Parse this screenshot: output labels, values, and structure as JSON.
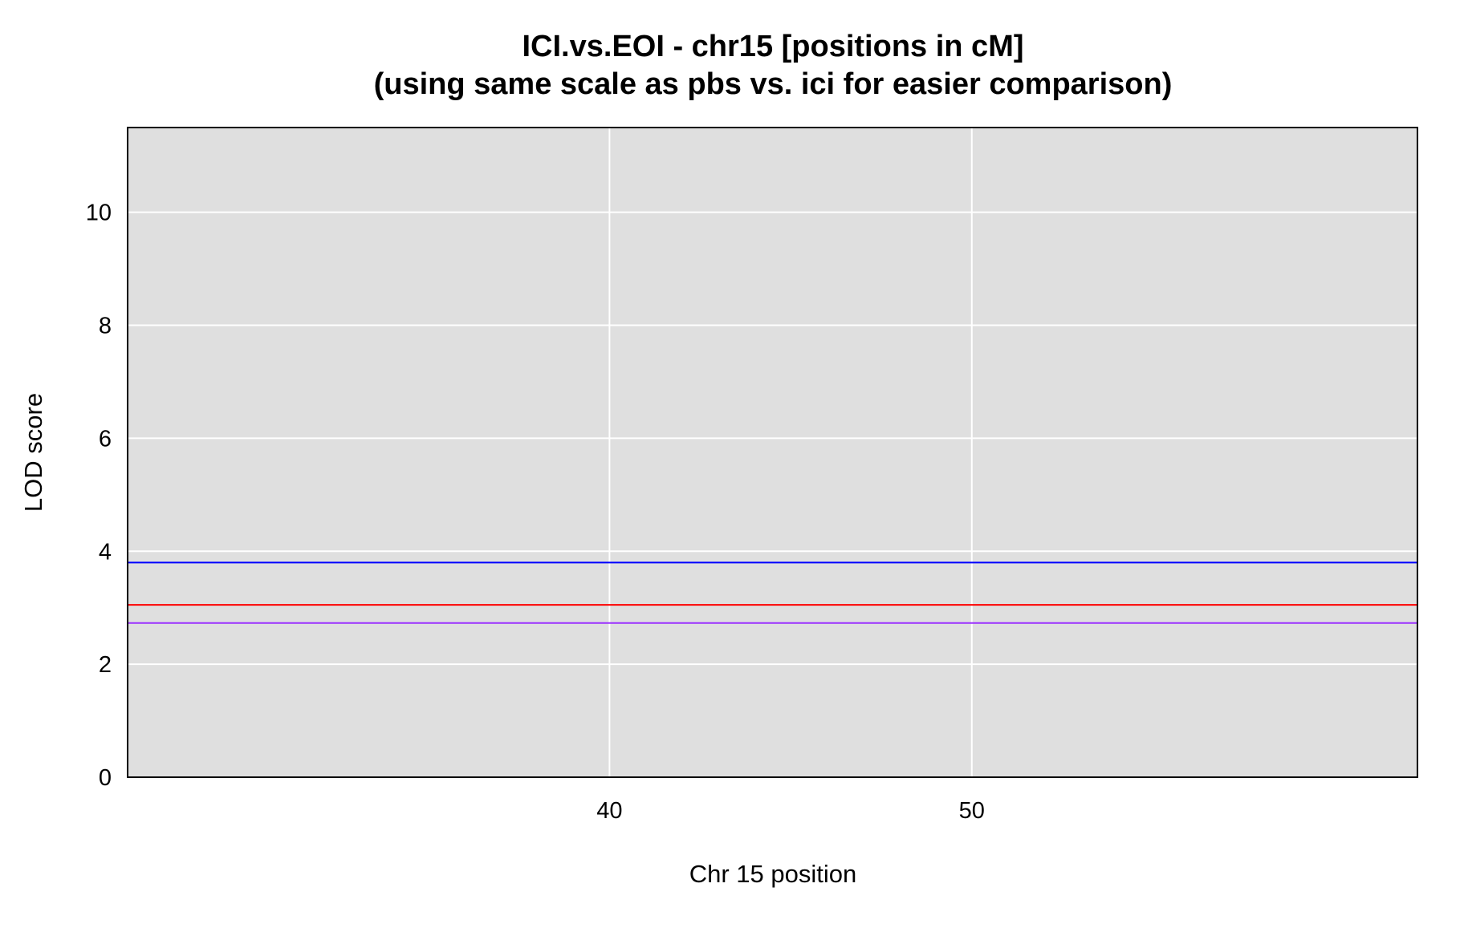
{
  "chart_data": {
    "type": "line",
    "title": "ICI.vs.EOI - chr15 [positions in cM]",
    "subtitle": "(using same scale as pbs  vs. ici for easier comparison)",
    "xlabel": "Chr 15 position",
    "ylabel": "LOD score",
    "xlim": [
      26.7,
      62.3
    ],
    "ylim": [
      0,
      11.5
    ],
    "x_ticks": [
      40,
      50
    ],
    "y_ticks": [
      0,
      2,
      4,
      6,
      8,
      10
    ],
    "grid": true,
    "background_color": "#dfdfdf",
    "grid_color": "#ffffff",
    "series": [
      {
        "color": "#0000ff",
        "x": [
          26.7,
          62.3
        ],
        "values": [
          3.8,
          3.8
        ]
      },
      {
        "color": "#ff0000",
        "x": [
          26.7,
          62.3
        ],
        "values": [
          3.05,
          3.05
        ]
      },
      {
        "color": "#9b30ff",
        "x": [
          26.7,
          62.3
        ],
        "values": [
          2.73,
          2.73
        ]
      }
    ]
  }
}
